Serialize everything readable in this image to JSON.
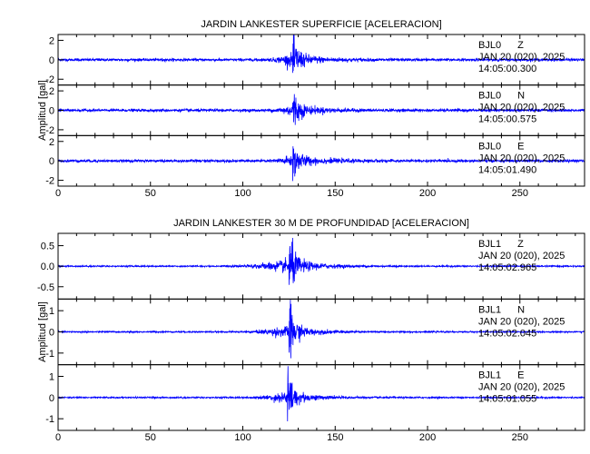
{
  "chart_data": [
    {
      "type": "line",
      "title": "JARDIN LANKESTER SUPERFICIE [ACELERACION]",
      "ylabel": "Amplitud [gal]",
      "xlabel": "",
      "xlim": [
        0,
        285
      ],
      "x_ticks": [
        0,
        50,
        100,
        150,
        200,
        250
      ],
      "line_color": "#0000ff",
      "panels": [
        {
          "station": "BJL0",
          "component": "Z",
          "date": "JAN 20 (020), 2025",
          "time": "14:05:00.300",
          "ylim": [
            -2.6,
            2.6
          ],
          "y_ticks": [
            -2,
            0,
            2
          ],
          "y_tick_labels": [
            "-2",
            "0",
            "2"
          ],
          "signal": {
            "noise_amp": 0.12,
            "onset": 110,
            "peak_time": 127,
            "peak_amp": 2.3,
            "decay": 14,
            "coda_amp": 0.55
          }
        },
        {
          "station": "BJL0",
          "component": "N",
          "date": "JAN 20 (020), 2025",
          "time": "14:05:00.575",
          "ylim": [
            -2.6,
            2.6
          ],
          "y_ticks": [
            -2,
            0,
            2
          ],
          "y_tick_labels": [
            "-2",
            "0",
            "2"
          ],
          "signal": {
            "noise_amp": 0.12,
            "onset": 112,
            "peak_time": 127,
            "peak_amp": 2.0,
            "decay": 14,
            "coda_amp": 0.5
          }
        },
        {
          "station": "BJL0",
          "component": "E",
          "date": "JAN 20 (020), 2025",
          "time": "14:05:01.490",
          "ylim": [
            -2.6,
            2.6
          ],
          "y_ticks": [
            -2,
            0,
            2
          ],
          "y_tick_labels": [
            "-2",
            "0",
            "2"
          ],
          "signal": {
            "noise_amp": 0.12,
            "onset": 112,
            "peak_time": 127,
            "peak_amp": 1.9,
            "decay": 14,
            "coda_amp": 0.5
          }
        }
      ]
    },
    {
      "type": "line",
      "title": "JARDIN LANKESTER 30 M DE PROFUNDIDAD [ACELERACION]",
      "ylabel": "Amplitud [gal]",
      "xlabel": "",
      "xlim": [
        0,
        285
      ],
      "x_ticks": [
        0,
        50,
        100,
        150,
        200,
        250
      ],
      "line_color": "#0000ff",
      "panels": [
        {
          "station": "BJL1",
          "component": "Z",
          "date": "JAN 20 (020), 2025",
          "time": "14:05:02.965",
          "ylim": [
            -0.8,
            0.8
          ],
          "y_ticks": [
            -0.5,
            0.0,
            0.5
          ],
          "y_tick_labels": [
            "-0.5",
            "0.0",
            "0.5"
          ],
          "signal": {
            "noise_amp": 0.015,
            "onset": 88,
            "peak_time": 125,
            "peak_amp": 0.72,
            "decay": 16,
            "coda_amp": 0.14
          }
        },
        {
          "station": "BJL1",
          "component": "N",
          "date": "JAN 20 (020), 2025",
          "time": "14:05:02.045",
          "ylim": [
            -1.55,
            1.55
          ],
          "y_ticks": [
            -1,
            0,
            1
          ],
          "y_tick_labels": [
            "-1",
            "0",
            "1"
          ],
          "signal": {
            "noise_amp": 0.03,
            "onset": 95,
            "peak_time": 125,
            "peak_amp": 1.45,
            "decay": 14,
            "coda_amp": 0.25
          }
        },
        {
          "station": "BJL1",
          "component": "E",
          "date": "JAN 20 (020), 2025",
          "time": "14:05:01.055",
          "ylim": [
            -1.55,
            1.55
          ],
          "y_ticks": [
            -1,
            0,
            1
          ],
          "y_tick_labels": [
            "-1",
            "0",
            "1"
          ],
          "signal": {
            "noise_amp": 0.03,
            "onset": 100,
            "peak_time": 124,
            "peak_amp": 1.4,
            "decay": 14,
            "coda_amp": 0.25
          }
        }
      ]
    }
  ]
}
